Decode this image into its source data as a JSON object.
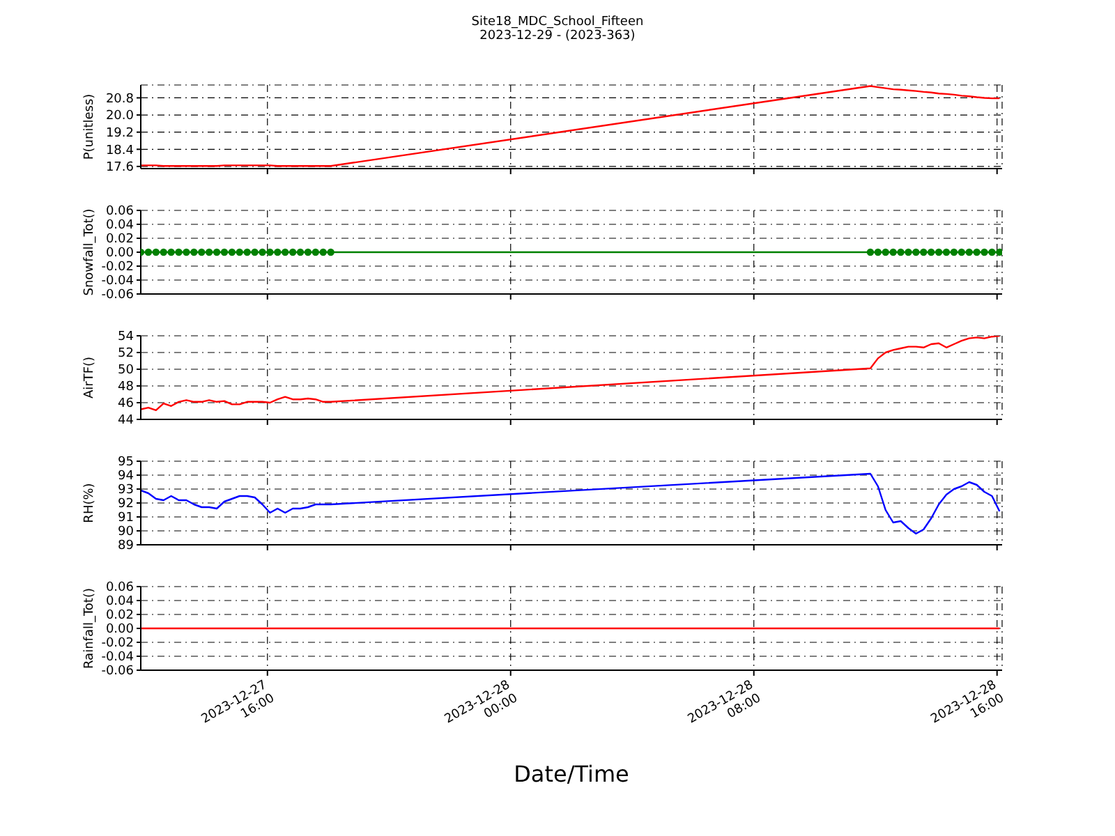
{
  "chart_data": [
    {
      "type": "line",
      "title": "Site18_MDC_School_Fifteen",
      "subtitle": "2023-12-29 - (2023-363)",
      "ylabel": "P(unitless)",
      "color": "#ff0000",
      "line_style": "solid",
      "grid": true,
      "tick_labels": "y",
      "x": [
        "2023-12-27T11:50",
        "2023-12-27T12:05",
        "2023-12-27T12:20",
        "2023-12-27T12:35",
        "2023-12-27T12:50",
        "2023-12-27T13:05",
        "2023-12-27T13:20",
        "2023-12-27T13:35",
        "2023-12-27T13:50",
        "2023-12-27T14:05",
        "2023-12-27T14:20",
        "2023-12-27T14:35",
        "2023-12-27T14:50",
        "2023-12-27T15:05",
        "2023-12-27T15:20",
        "2023-12-27T15:35",
        "2023-12-27T15:50",
        "2023-12-27T16:05",
        "2023-12-27T16:20",
        "2023-12-27T16:35",
        "2023-12-27T16:50",
        "2023-12-27T17:05",
        "2023-12-27T17:20",
        "2023-12-27T17:35",
        "2023-12-27T17:50",
        "2023-12-27T18:05",
        "2023-12-28T11:50",
        "2023-12-28T12:05",
        "2023-12-28T12:20",
        "2023-12-28T12:35",
        "2023-12-28T12:50",
        "2023-12-28T13:05",
        "2023-12-28T13:20",
        "2023-12-28T13:35",
        "2023-12-28T13:50",
        "2023-12-28T14:05",
        "2023-12-28T14:20",
        "2023-12-28T14:35",
        "2023-12-28T14:50",
        "2023-12-28T15:05",
        "2023-12-28T15:20",
        "2023-12-28T15:35",
        "2023-12-28T15:50",
        "2023-12-28T16:05"
      ],
      "values": [
        17.65,
        17.65,
        17.65,
        17.62,
        17.62,
        17.62,
        17.62,
        17.62,
        17.62,
        17.62,
        17.62,
        17.65,
        17.65,
        17.65,
        17.65,
        17.65,
        17.65,
        17.65,
        17.62,
        17.62,
        17.62,
        17.62,
        17.62,
        17.62,
        17.62,
        17.62,
        21.35,
        21.3,
        21.25,
        21.2,
        21.18,
        21.15,
        21.12,
        21.08,
        21.05,
        21.0,
        20.98,
        20.95,
        20.9,
        20.87,
        20.83,
        20.8,
        20.78,
        20.78
      ],
      "xlim": [
        "2023-12-27T11:50",
        "2023-12-28T16:10"
      ],
      "xticks": [
        {
          "value": "2023-12-27T16:00",
          "label": null
        },
        {
          "value": "2023-12-28T00:00",
          "label": null
        },
        {
          "value": "2023-12-28T08:00",
          "label": null
        },
        {
          "value": "2023-12-28T16:00",
          "label": null
        }
      ],
      "ylim": [
        17.5,
        21.4
      ],
      "yticks": [
        17.6,
        18.4,
        19.2,
        {
          "value": 20,
          "label": "20.0"
        },
        20.8
      ]
    },
    {
      "type": "line",
      "ylabel": "Snowfall_Tot()",
      "color": "#008000",
      "marker": "circle",
      "line_style": "solid",
      "grid": true,
      "tick_labels": "y",
      "x": [
        "2023-12-27T11:50",
        "2023-12-27T12:05",
        "2023-12-27T12:20",
        "2023-12-27T12:35",
        "2023-12-27T12:50",
        "2023-12-27T13:05",
        "2023-12-27T13:20",
        "2023-12-27T13:35",
        "2023-12-27T13:50",
        "2023-12-27T14:05",
        "2023-12-27T14:20",
        "2023-12-27T14:35",
        "2023-12-27T14:50",
        "2023-12-27T15:05",
        "2023-12-27T15:20",
        "2023-12-27T15:35",
        "2023-12-27T15:50",
        "2023-12-27T16:05",
        "2023-12-27T16:20",
        "2023-12-27T16:35",
        "2023-12-27T16:50",
        "2023-12-27T17:05",
        "2023-12-27T17:20",
        "2023-12-27T17:35",
        "2023-12-27T17:50",
        "2023-12-27T18:05",
        "2023-12-28T11:50",
        "2023-12-28T12:05",
        "2023-12-28T12:20",
        "2023-12-28T12:35",
        "2023-12-28T12:50",
        "2023-12-28T13:05",
        "2023-12-28T13:20",
        "2023-12-28T13:35",
        "2023-12-28T13:50",
        "2023-12-28T14:05",
        "2023-12-28T14:20",
        "2023-12-28T14:35",
        "2023-12-28T14:50",
        "2023-12-28T15:05",
        "2023-12-28T15:20",
        "2023-12-28T15:35",
        "2023-12-28T15:50",
        "2023-12-28T16:05"
      ],
      "values": [
        0,
        0,
        0,
        0,
        0,
        0,
        0,
        0,
        0,
        0,
        0,
        0,
        0,
        0,
        0,
        0,
        0,
        0,
        0,
        0,
        0,
        0,
        0,
        0,
        0,
        0,
        0,
        0,
        0,
        0,
        0,
        0,
        0,
        0,
        0,
        0,
        0,
        0,
        0,
        0,
        0,
        0,
        0,
        0
      ],
      "xlim": [
        "2023-12-27T11:50",
        "2023-12-28T16:10"
      ],
      "xticks": [
        {
          "value": "2023-12-27T16:00",
          "label": null
        },
        {
          "value": "2023-12-28T00:00",
          "label": null
        },
        {
          "value": "2023-12-28T08:00",
          "label": null
        },
        {
          "value": "2023-12-28T16:00",
          "label": null
        }
      ],
      "ylim": [
        -0.06,
        0.06
      ],
      "yticks": [
        {
          "value": -0.06,
          "label": "-0.06"
        },
        {
          "value": -0.04,
          "label": "-0.04"
        },
        {
          "value": -0.02,
          "label": "-0.02"
        },
        {
          "value": 0,
          "label": "0.00"
        },
        0.02,
        0.04,
        0.06
      ]
    },
    {
      "type": "line",
      "ylabel": "AirTF()",
      "color": "#ff0000",
      "line_style": "solid",
      "grid": true,
      "tick_labels": "y",
      "x": [
        "2023-12-27T11:50",
        "2023-12-27T12:05",
        "2023-12-27T12:20",
        "2023-12-27T12:35",
        "2023-12-27T12:50",
        "2023-12-27T13:05",
        "2023-12-27T13:20",
        "2023-12-27T13:35",
        "2023-12-27T13:50",
        "2023-12-27T14:05",
        "2023-12-27T14:20",
        "2023-12-27T14:35",
        "2023-12-27T14:50",
        "2023-12-27T15:05",
        "2023-12-27T15:20",
        "2023-12-27T15:35",
        "2023-12-27T15:50",
        "2023-12-27T16:05",
        "2023-12-27T16:20",
        "2023-12-27T16:35",
        "2023-12-27T16:50",
        "2023-12-27T17:05",
        "2023-12-27T17:20",
        "2023-12-27T17:35",
        "2023-12-27T17:50",
        "2023-12-27T18:05",
        "2023-12-28T11:50",
        "2023-12-28T12:05",
        "2023-12-28T12:20",
        "2023-12-28T12:35",
        "2023-12-28T12:50",
        "2023-12-28T13:05",
        "2023-12-28T13:20",
        "2023-12-28T13:35",
        "2023-12-28T13:50",
        "2023-12-28T14:05",
        "2023-12-28T14:20",
        "2023-12-28T14:35",
        "2023-12-28T14:50",
        "2023-12-28T15:05",
        "2023-12-28T15:20",
        "2023-12-28T15:35",
        "2023-12-28T15:50",
        "2023-12-28T16:05"
      ],
      "values": [
        45.2,
        45.4,
        45.1,
        45.9,
        45.6,
        46.1,
        46.3,
        46.1,
        46.1,
        46.3,
        46.1,
        46.2,
        45.8,
        45.8,
        46.1,
        46.1,
        46.1,
        46.0,
        46.4,
        46.7,
        46.4,
        46.4,
        46.5,
        46.4,
        46.1,
        46.1,
        50.1,
        51.3,
        52.0,
        52.3,
        52.5,
        52.7,
        52.7,
        52.6,
        53.0,
        53.1,
        52.6,
        53.0,
        53.4,
        53.7,
        53.8,
        53.7,
        53.9,
        54.0
      ],
      "xlim": [
        "2023-12-27T11:50",
        "2023-12-28T16:10"
      ],
      "xticks": [
        {
          "value": "2023-12-27T16:00",
          "label": null
        },
        {
          "value": "2023-12-28T00:00",
          "label": null
        },
        {
          "value": "2023-12-28T08:00",
          "label": null
        },
        {
          "value": "2023-12-28T16:00",
          "label": null
        }
      ],
      "ylim": [
        44,
        54
      ],
      "yticks": [
        44,
        46,
        48,
        50,
        52,
        54
      ]
    },
    {
      "type": "line",
      "ylabel": "RH(%)",
      "color": "#0000ff",
      "line_style": "solid",
      "grid": true,
      "tick_labels": "y",
      "x": [
        "2023-12-27T11:50",
        "2023-12-27T12:05",
        "2023-12-27T12:20",
        "2023-12-27T12:35",
        "2023-12-27T12:50",
        "2023-12-27T13:05",
        "2023-12-27T13:20",
        "2023-12-27T13:35",
        "2023-12-27T13:50",
        "2023-12-27T14:05",
        "2023-12-27T14:20",
        "2023-12-27T14:35",
        "2023-12-27T14:50",
        "2023-12-27T15:05",
        "2023-12-27T15:20",
        "2023-12-27T15:35",
        "2023-12-27T15:50",
        "2023-12-27T16:05",
        "2023-12-27T16:20",
        "2023-12-27T16:35",
        "2023-12-27T16:50",
        "2023-12-27T17:05",
        "2023-12-27T17:20",
        "2023-12-27T17:35",
        "2023-12-27T17:50",
        "2023-12-27T18:05",
        "2023-12-28T11:50",
        "2023-12-28T12:05",
        "2023-12-28T12:20",
        "2023-12-28T12:35",
        "2023-12-28T12:50",
        "2023-12-28T13:05",
        "2023-12-28T13:20",
        "2023-12-28T13:35",
        "2023-12-28T13:50",
        "2023-12-28T14:05",
        "2023-12-28T14:20",
        "2023-12-28T14:35",
        "2023-12-28T14:50",
        "2023-12-28T15:05",
        "2023-12-28T15:20",
        "2023-12-28T15:35",
        "2023-12-28T15:50",
        "2023-12-28T16:05"
      ],
      "values": [
        92.9,
        92.7,
        92.3,
        92.2,
        92.5,
        92.2,
        92.2,
        91.9,
        91.7,
        91.7,
        91.6,
        92.1,
        92.3,
        92.5,
        92.5,
        92.4,
        91.9,
        91.3,
        91.6,
        91.3,
        91.6,
        91.6,
        91.7,
        91.9,
        91.9,
        91.9,
        94.1,
        93.2,
        91.5,
        90.6,
        90.7,
        90.2,
        89.8,
        90.1,
        90.9,
        91.9,
        92.6,
        93.0,
        93.2,
        93.5,
        93.3,
        92.8,
        92.5,
        91.4
      ],
      "xlim": [
        "2023-12-27T11:50",
        "2023-12-28T16:10"
      ],
      "xticks": [
        {
          "value": "2023-12-27T16:00",
          "label": null
        },
        {
          "value": "2023-12-28T00:00",
          "label": null
        },
        {
          "value": "2023-12-28T08:00",
          "label": null
        },
        {
          "value": "2023-12-28T16:00",
          "label": null
        }
      ],
      "ylim": [
        89,
        95
      ],
      "yticks": [
        89,
        90,
        91,
        92,
        93,
        94,
        95
      ]
    },
    {
      "type": "line",
      "ylabel": "Rainfall_Tot()",
      "xlabel": "Date/Time",
      "color": "#ff0000",
      "line_style": "solid",
      "grid": true,
      "x": [
        "2023-12-27T11:50",
        "2023-12-27T12:05",
        "2023-12-27T12:20",
        "2023-12-27T12:35",
        "2023-12-27T12:50",
        "2023-12-27T13:05",
        "2023-12-27T13:20",
        "2023-12-27T13:35",
        "2023-12-27T13:50",
        "2023-12-27T14:05",
        "2023-12-27T14:20",
        "2023-12-27T14:35",
        "2023-12-27T14:50",
        "2023-12-27T15:05",
        "2023-12-27T15:20",
        "2023-12-27T15:35",
        "2023-12-27T15:50",
        "2023-12-27T16:05",
        "2023-12-27T16:20",
        "2023-12-27T16:35",
        "2023-12-27T16:50",
        "2023-12-27T17:05",
        "2023-12-27T17:20",
        "2023-12-27T17:35",
        "2023-12-27T17:50",
        "2023-12-27T18:05",
        "2023-12-28T11:50",
        "2023-12-28T12:05",
        "2023-12-28T12:20",
        "2023-12-28T12:35",
        "2023-12-28T12:50",
        "2023-12-28T13:05",
        "2023-12-28T13:20",
        "2023-12-28T13:35",
        "2023-12-28T13:50",
        "2023-12-28T14:05",
        "2023-12-28T14:20",
        "2023-12-28T14:35",
        "2023-12-28T14:50",
        "2023-12-28T15:05",
        "2023-12-28T15:20",
        "2023-12-28T15:35",
        "2023-12-28T15:50",
        "2023-12-28T16:05"
      ],
      "values": [
        0,
        0,
        0,
        0,
        0,
        0,
        0,
        0,
        0,
        0,
        0,
        0,
        0,
        0,
        0,
        0,
        0,
        0,
        0,
        0,
        0,
        0,
        0,
        0,
        0,
        0,
        0,
        0,
        0,
        0,
        0,
        0,
        0,
        0,
        0,
        0,
        0,
        0,
        0,
        0,
        0,
        0,
        0,
        0
      ],
      "xlim": [
        "2023-12-27T11:50",
        "2023-12-28T16:10"
      ],
      "xticks": [
        {
          "value": "2023-12-27T16:00",
          "label": "2023-12-27\n16:00"
        },
        {
          "value": "2023-12-28T00:00",
          "label": "2023-12-28\n00:00"
        },
        {
          "value": "2023-12-28T08:00",
          "label": "2023-12-28\n08:00"
        },
        {
          "value": "2023-12-28T16:00",
          "label": "2023-12-28\n16:00"
        }
      ],
      "ylim": [
        -0.06,
        0.06
      ],
      "yticks": [
        {
          "value": -0.06,
          "label": "-0.06"
        },
        {
          "value": -0.04,
          "label": "-0.04"
        },
        {
          "value": -0.02,
          "label": "-0.02"
        },
        {
          "value": 0,
          "label": "0.00"
        },
        0.02,
        0.04,
        0.06
      ]
    }
  ]
}
